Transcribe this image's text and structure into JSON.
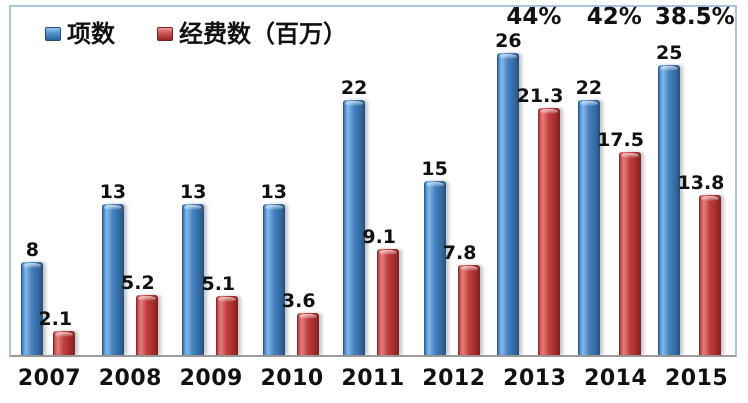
{
  "chart_data": {
    "type": "bar",
    "title": "",
    "xlabel": "",
    "ylabel": "",
    "categories": [
      "2007",
      "2008",
      "2009",
      "2010",
      "2011",
      "2012",
      "2013",
      "2014",
      "2015"
    ],
    "series": [
      {
        "name": "项数",
        "color": "#4580c0",
        "values": [
          8,
          13,
          13,
          13,
          22,
          15,
          26,
          22,
          25
        ]
      },
      {
        "name": "经费数（百万）",
        "color": "#c23b3b",
        "values": [
          2.1,
          5.2,
          5.1,
          3.6,
          9.1,
          7.8,
          21.3,
          17.5,
          13.8
        ]
      }
    ],
    "annotations": [
      {
        "category": "2013",
        "text": "44%"
      },
      {
        "category": "2014",
        "text": "42%"
      },
      {
        "category": "2015",
        "text": "38.5%"
      }
    ],
    "ylim": [
      0,
      30
    ],
    "grid": false,
    "value_labels": true,
    "legend_position": "top-left",
    "colors": {
      "frame_border": "#a9c4e2",
      "baseline": "#9b9b9b",
      "label_text": "#111111",
      "background": "#ffffff"
    }
  }
}
